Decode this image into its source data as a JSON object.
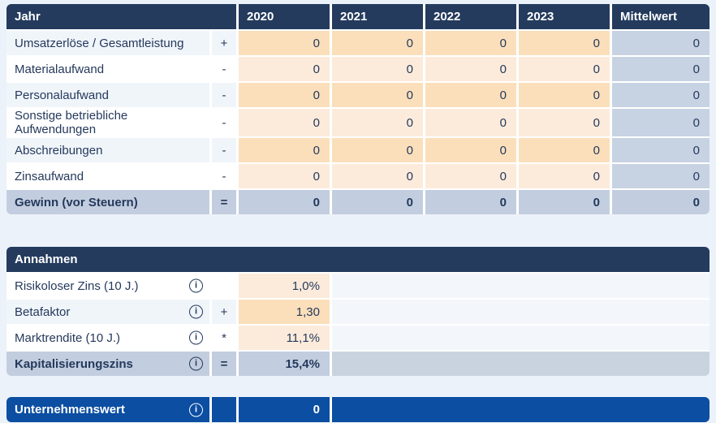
{
  "colors": {
    "navy": "#243B5E",
    "blue": "#0B4EA2",
    "ink": "#25395C",
    "peach_input_dark": "#FBDFBB",
    "peach_input_light": "#FCEBDB",
    "row_stripe": "#F0F5FA",
    "mittelwert_column": "#C7D3E3",
    "total_row": "#C2CEDF",
    "page_background": "#ECF2F9"
  },
  "pnl_table": {
    "header": {
      "label": "Jahr",
      "years": [
        "2020",
        "2021",
        "2022",
        "2023"
      ],
      "mittelwert": "Mittelwert"
    },
    "rows": [
      {
        "label": "Umsatzerlöse / Gesamtleistung",
        "operator": "+",
        "values": [
          "0",
          "0",
          "0",
          "0"
        ],
        "mittelwert": "0"
      },
      {
        "label": "Materialaufwand",
        "operator": "-",
        "values": [
          "0",
          "0",
          "0",
          "0"
        ],
        "mittelwert": "0"
      },
      {
        "label": "Personalaufwand",
        "operator": "-",
        "values": [
          "0",
          "0",
          "0",
          "0"
        ],
        "mittelwert": "0"
      },
      {
        "label": "Sonstige betriebliche Aufwendungen",
        "operator": "-",
        "values": [
          "0",
          "0",
          "0",
          "0"
        ],
        "mittelwert": "0"
      },
      {
        "label": "Abschreibungen",
        "operator": "-",
        "values": [
          "0",
          "0",
          "0",
          "0"
        ],
        "mittelwert": "0"
      },
      {
        "label": "Zinsaufwand",
        "operator": "-",
        "values": [
          "0",
          "0",
          "0",
          "0"
        ],
        "mittelwert": "0"
      }
    ],
    "total_row": {
      "label": "Gewinn (vor Steuern)",
      "operator": "=",
      "values": [
        "0",
        "0",
        "0",
        "0"
      ],
      "mittelwert": "0"
    }
  },
  "assumptions": {
    "header": "Annahmen",
    "info_icon": "i",
    "rows": [
      {
        "label": "Risikoloser Zins (10 J.)",
        "operator": "",
        "value": "1,0%"
      },
      {
        "label": "Betafaktor",
        "operator": "+",
        "value": "1,30"
      },
      {
        "label": "Marktrendite (10 J.)",
        "operator": "*",
        "value": "11,1%"
      }
    ],
    "total_row": {
      "label": "Kapitalisierungszins",
      "operator": "=",
      "value": "15,4%"
    }
  },
  "result": {
    "label": "Unternehmenswert",
    "operator": "",
    "value": "0"
  }
}
